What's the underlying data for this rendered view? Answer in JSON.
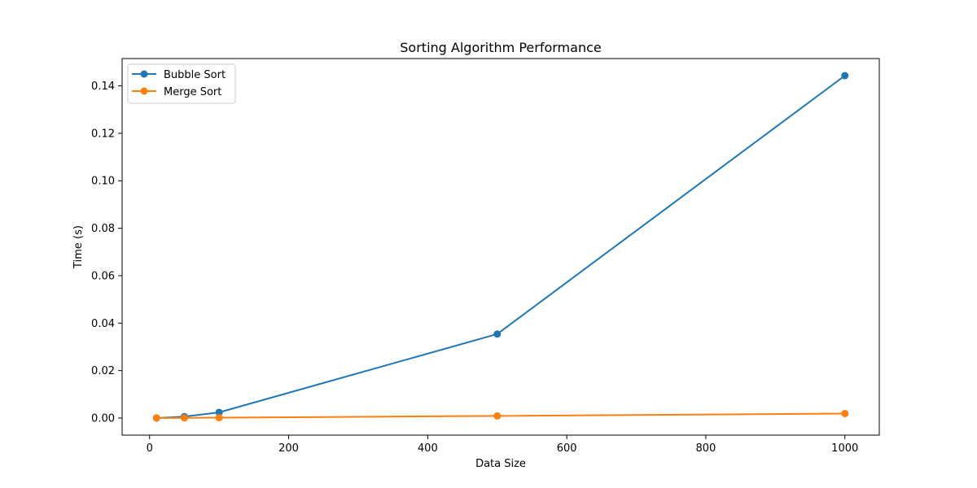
{
  "chart_data": {
    "type": "line",
    "title": "Sorting Algorithm Performance",
    "xlabel": "Data Size",
    "ylabel": "Time (s)",
    "x": [
      10,
      50,
      100,
      500,
      1000
    ],
    "xlim": [
      -39.5,
      1049.5
    ],
    "ylim": [
      -0.0072,
      0.1515
    ],
    "x_ticks": [
      0,
      200,
      400,
      600,
      800,
      1000
    ],
    "x_tick_labels": [
      "0",
      "200",
      "400",
      "600",
      "800",
      "1000"
    ],
    "y_ticks": [
      0,
      0.02,
      0.04,
      0.06,
      0.08,
      0.1,
      0.12,
      0.14
    ],
    "y_tick_labels": [
      "0.00",
      "0.02",
      "0.04",
      "0.06",
      "0.08",
      "0.10",
      "0.12",
      "0.14"
    ],
    "grid": false,
    "legend_position": "upper-left",
    "series": [
      {
        "name": "Bubble Sort",
        "color": "#1f77b4",
        "marker": "circle",
        "values": [
          2e-05,
          0.0006,
          0.0024,
          0.0354,
          0.1443
        ]
      },
      {
        "name": "Merge Sort",
        "color": "#ff7f0e",
        "marker": "circle",
        "values": [
          2e-05,
          8e-05,
          0.00015,
          0.0009,
          0.0019
        ]
      }
    ]
  }
}
